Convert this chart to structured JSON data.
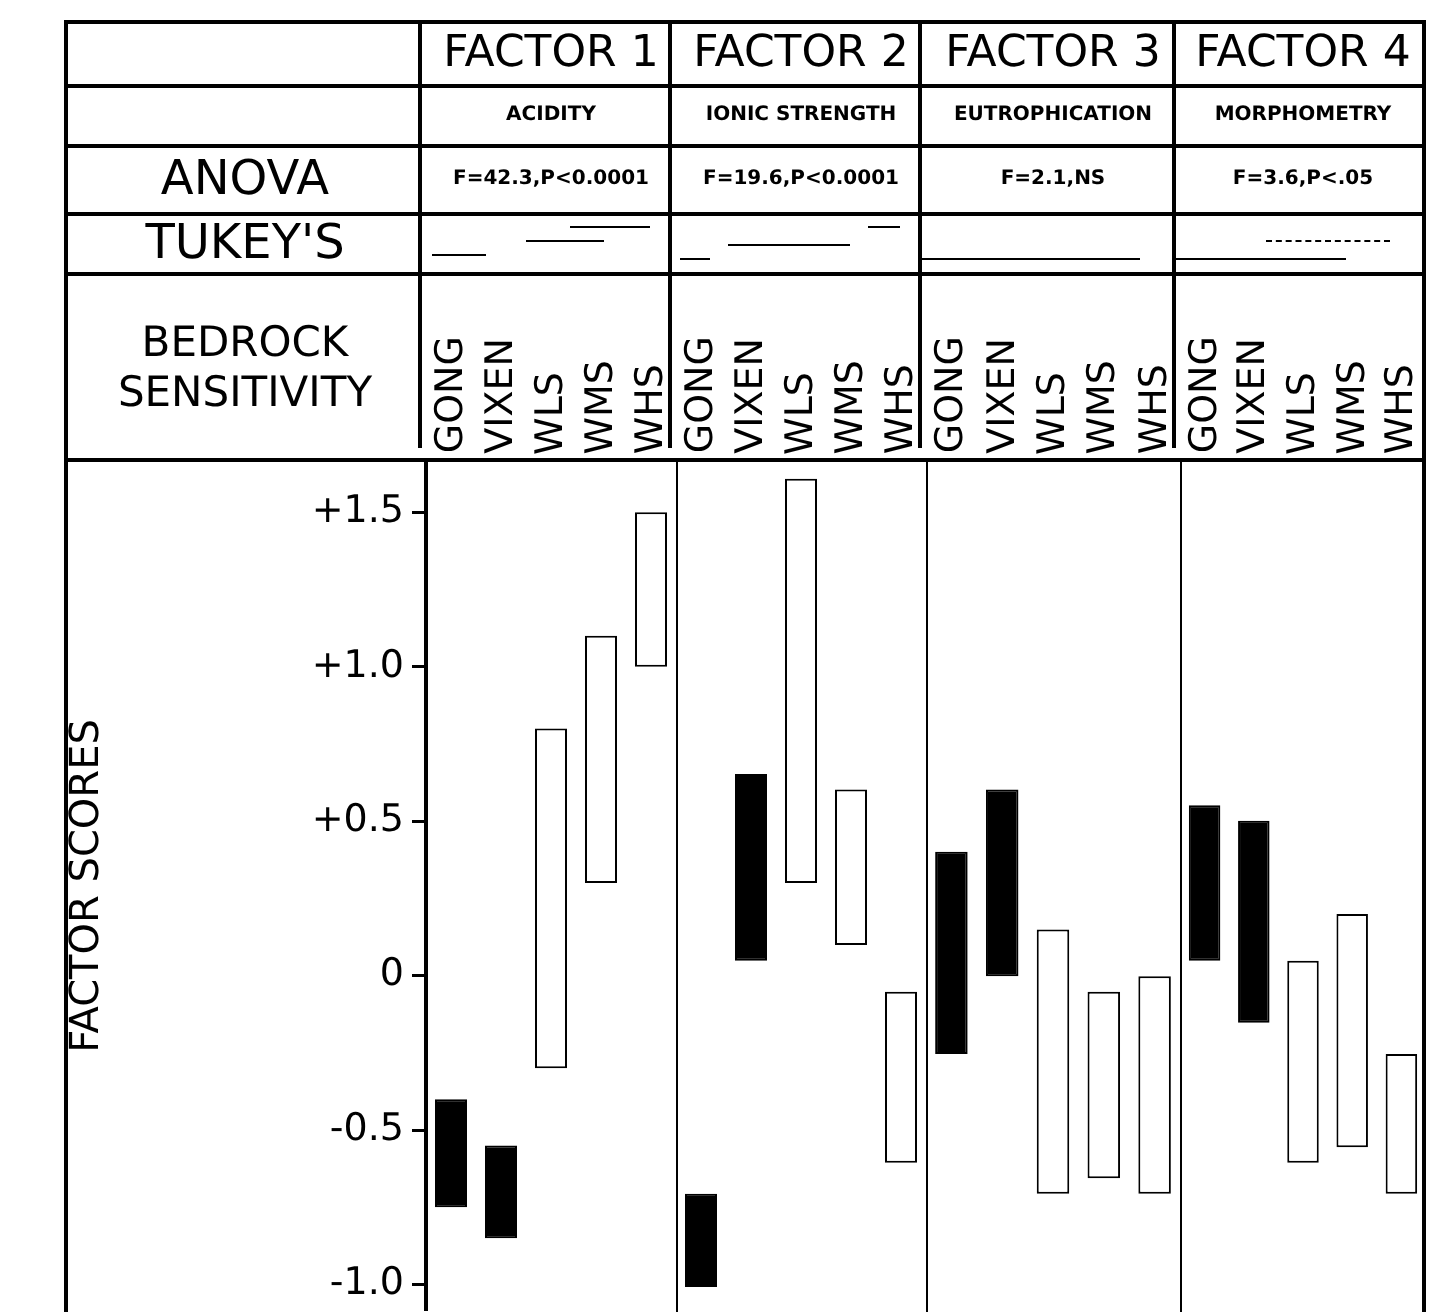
{
  "chart_data": [
    {
      "type": "other",
      "annotations": [
        "ANOVA",
        "TUKEY'S",
        "BEDROCK SENSITIVITY"
      ]
    },
    {
      "type": "bar",
      "title": "FACTOR 1",
      "subtitle": "ACIDITY",
      "annotations": [
        "F=42.3,P<0.0001"
      ],
      "ylabel": "FACTOR SCORES",
      "categories": [
        "GONG",
        "VIXEN",
        "WLS",
        "WMS",
        "WHS"
      ],
      "base": [
        -0.75,
        -0.85,
        -0.3,
        0.3,
        1.0
      ],
      "values": [
        0.35,
        0.3,
        1.1,
        0.8,
        0.5
      ],
      "colors": [
        "#000000",
        "#000000",
        "#ffffff",
        "#ffffff",
        "#ffffff"
      ],
      "ylim": [
        -1.08,
        1.66
      ],
      "yticks": [
        {
          "value": 1.5,
          "label": "+1.5"
        },
        {
          "value": 1.0,
          "label": "+1.0"
        },
        {
          "value": 0.5,
          "label": "+0.5"
        },
        0,
        -0.5,
        {
          "value": -1.0,
          "label": "-1.0"
        }
      ]
    },
    {
      "type": "bar",
      "title": "FACTOR 2",
      "subtitle": "IONIC STRENGTH",
      "annotations": [
        "F=19.6,P<0.0001"
      ],
      "categories": [
        "GONG",
        "VIXEN",
        "WLS",
        "WMS",
        "WHS"
      ],
      "base": [
        -1.0,
        0.05,
        0.3,
        0.1,
        -0.6
      ],
      "values": [
        0.3,
        0.6,
        1.3,
        0.5,
        0.55
      ],
      "colors": [
        "#000000",
        "#000000",
        "#ffffff",
        "#ffffff",
        "#ffffff"
      ],
      "ylim": [
        -1.08,
        1.66
      ],
      "tick_labels": "x"
    },
    {
      "type": "bar",
      "title": "FACTOR 3",
      "subtitle": "EUTROPHICATION",
      "annotations": [
        "F=2.1,NS"
      ],
      "categories": [
        "GONG",
        "VIXEN",
        "WLS",
        "WMS",
        "WHS"
      ],
      "base": [
        -0.25,
        0,
        -0.7,
        -0.65,
        -0.7
      ],
      "values": [
        0.65,
        0.6,
        0.85,
        0.6,
        0.7
      ],
      "colors": [
        "#000000",
        "#000000",
        "#ffffff",
        "#ffffff",
        "#ffffff"
      ],
      "ylim": [
        -1.08,
        1.66
      ],
      "tick_labels": "x"
    },
    {
      "type": "bar",
      "title": "FACTOR 4",
      "subtitle": "MORPHOMETRY",
      "annotations": [
        "F=3.6,P<.05"
      ],
      "categories": [
        "GONG",
        "VIXEN",
        "WLS",
        "WMS",
        "WHS"
      ],
      "base": [
        0.05,
        -0.15,
        -0.6,
        -0.55,
        -0.7
      ],
      "values": [
        0.5,
        0.65,
        0.65,
        0.75,
        0.45
      ],
      "colors": [
        "#000000",
        "#000000",
        "#ffffff",
        "#ffffff",
        "#ffffff"
      ],
      "ylim": [
        -1.08,
        1.66
      ],
      "tick_labels": "x"
    }
  ]
}
